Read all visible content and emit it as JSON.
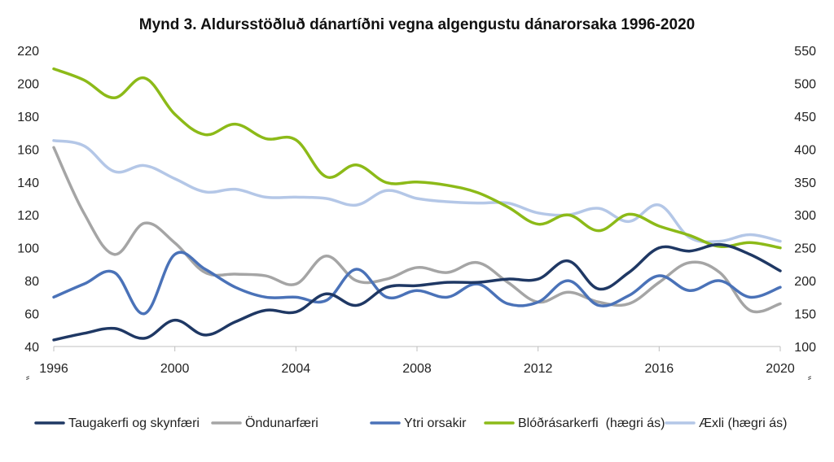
{
  "chart_data": {
    "type": "line",
    "title": "Mynd 3. Aldursstöðluð dánartíðni vegna algengustu dánarorsaka 1996-2020",
    "x": [
      1996,
      1997,
      1998,
      1999,
      2000,
      2001,
      2002,
      2003,
      2004,
      2005,
      2006,
      2007,
      2008,
      2009,
      2010,
      2011,
      2012,
      2013,
      2014,
      2015,
      2016,
      2017,
      2018,
      2019,
      2020
    ],
    "x_ticks": [
      "1996",
      "2000",
      "2004",
      "2008",
      "2012",
      "2016",
      "2020"
    ],
    "y_left": {
      "min": 40,
      "max": 220,
      "step": 20,
      "ticks": [
        "40",
        "60",
        "80",
        "100",
        "120",
        "140",
        "160",
        "180",
        "200",
        "220"
      ]
    },
    "y_right": {
      "min": 100,
      "max": 550,
      "step": 50,
      "ticks": [
        "100",
        "150",
        "200",
        "250",
        "300",
        "350",
        "400",
        "450",
        "500",
        "550"
      ]
    },
    "axis_break_marks": [
      "⸗",
      "⸗"
    ],
    "legend_position": "bottom",
    "series": [
      {
        "name": "Taugakerfi og skynfæri",
        "axis": "left",
        "color": "#1f3864",
        "values": [
          44,
          48,
          51,
          45,
          56,
          47,
          55,
          62,
          61,
          72,
          65,
          76,
          77,
          79,
          79,
          81,
          81,
          92,
          75,
          85,
          100,
          98,
          102,
          96,
          86
        ]
      },
      {
        "name": "Öndunarfæri",
        "axis": "left",
        "color": "#a5a5a5",
        "values": [
          161,
          121,
          96,
          115,
          103,
          85,
          84,
          83,
          78,
          95,
          80,
          81,
          88,
          85,
          91,
          79,
          67,
          73,
          67,
          66,
          79,
          91,
          85,
          62,
          66
        ]
      },
      {
        "name": "Ytri orsakir",
        "axis": "left",
        "color": "#4a72b8",
        "values": [
          70,
          78,
          85,
          60,
          96,
          87,
          76,
          70,
          70,
          68,
          87,
          70,
          74,
          70,
          78,
          66,
          67,
          80,
          65,
          71,
          83,
          74,
          80,
          70,
          76
        ]
      },
      {
        "name": "Blóðrásarkerfi  (hægri ás)",
        "axis": "right",
        "color": "#8cba18",
        "values": [
          522,
          505,
          478,
          508,
          453,
          422,
          438,
          416,
          414,
          358,
          376,
          349,
          350,
          345,
          334,
          312,
          286,
          300,
          276,
          301,
          283,
          269,
          252,
          258,
          250
        ]
      },
      {
        "name": "Æxli (hægri ás)",
        "axis": "right",
        "color": "#b4c7e7",
        "values": [
          413,
          405,
          366,
          375,
          355,
          335,
          339,
          327,
          327,
          325,
          315,
          337,
          325,
          320,
          318,
          318,
          303,
          300,
          310,
          290,
          315,
          266,
          260,
          270,
          260
        ]
      }
    ]
  }
}
